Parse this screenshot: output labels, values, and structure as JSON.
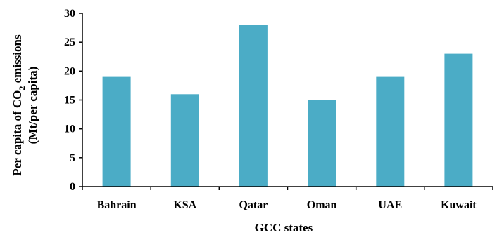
{
  "chart_data": {
    "type": "bar",
    "categories": [
      "Bahrain",
      "KSA",
      "Qatar",
      "Oman",
      "UAE",
      "Kuwait"
    ],
    "values": [
      19,
      16,
      28,
      15,
      19,
      23
    ],
    "xlabel": "GCC states",
    "ylabel_line1_prefix": "Per capita of CO",
    "ylabel_line1_sub": "2",
    "ylabel_line1_suffix": " emissions",
    "ylabel_line2": "(Mt/per capita)",
    "ylim": [
      0,
      30
    ],
    "yticks": [
      0,
      5,
      10,
      15,
      20,
      25,
      30
    ],
    "bar_color": "#4BACC6",
    "grid": false,
    "legend": "none"
  }
}
